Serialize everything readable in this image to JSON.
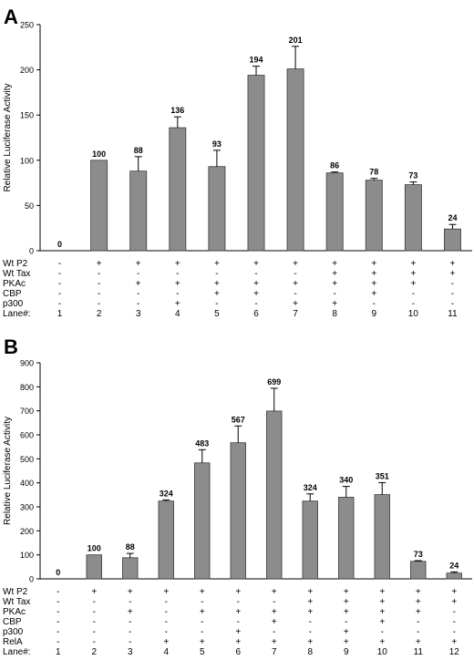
{
  "chart_data": [
    {
      "type": "bar",
      "panel_label": "A",
      "ylabel": "Relative Luciferase Activity",
      "ylim": [
        0,
        250
      ],
      "yticks": [
        0,
        50,
        100,
        150,
        200,
        250
      ],
      "values": [
        0,
        100,
        88,
        136,
        93,
        194,
        201,
        86,
        78,
        73,
        24
      ],
      "value_labels": [
        "0",
        "100",
        "88",
        "136",
        "93",
        "194",
        "201",
        "86",
        "78",
        "73",
        "24"
      ],
      "errors": [
        0,
        0,
        16,
        12,
        18,
        10,
        25,
        1,
        2,
        3,
        5
      ],
      "bar_color": "#8c8c8c",
      "grid": false,
      "condition_rows": [
        {
          "label": "Wt P2",
          "signs": [
            "-",
            "+",
            "+",
            "+",
            "+",
            "+",
            "+",
            "+",
            "+",
            "+",
            "+"
          ]
        },
        {
          "label": "Wt Tax",
          "signs": [
            "-",
            "-",
            "-",
            "-",
            "-",
            "-",
            "-",
            "+",
            "+",
            "+",
            "+"
          ]
        },
        {
          "label": "PKAc",
          "signs": [
            "-",
            "-",
            "+",
            "+",
            "+",
            "+",
            "+",
            "+",
            "+",
            "+",
            "-"
          ]
        },
        {
          "label": "CBP",
          "signs": [
            "-",
            "-",
            "-",
            "-",
            "+",
            "+",
            "-",
            "-",
            "+",
            "-",
            "-"
          ]
        },
        {
          "label": "p300",
          "signs": [
            "-",
            "-",
            "-",
            "+",
            "-",
            "-",
            "+",
            "+",
            "-",
            "-",
            "-"
          ]
        }
      ],
      "lane_row": {
        "label": "Lane#:",
        "values": [
          "1",
          "2",
          "3",
          "4",
          "5",
          "6",
          "7",
          "8",
          "9",
          "10",
          "11"
        ]
      }
    },
    {
      "type": "bar",
      "panel_label": "B",
      "ylabel": "Relative Luciferase Activity",
      "ylim": [
        0,
        900
      ],
      "yticks": [
        0,
        100,
        200,
        300,
        400,
        500,
        600,
        700,
        800,
        900
      ],
      "values": [
        0,
        100,
        88,
        324,
        483,
        567,
        699,
        324,
        340,
        351,
        73,
        24
      ],
      "value_labels": [
        "0",
        "100",
        "88",
        "324",
        "483",
        "567",
        "699",
        "324",
        "340",
        "351",
        "73",
        "24"
      ],
      "errors": [
        0,
        0,
        18,
        5,
        55,
        70,
        95,
        30,
        45,
        50,
        3,
        5
      ],
      "bar_color": "#8c8c8c",
      "grid": false,
      "condition_rows": [
        {
          "label": "Wt P2",
          "signs": [
            "-",
            "+",
            "+",
            "+",
            "+",
            "+",
            "+",
            "+",
            "+",
            "+",
            "+",
            "+"
          ]
        },
        {
          "label": "Wt Tax",
          "signs": [
            "-",
            "-",
            "-",
            "-",
            "-",
            "-",
            "-",
            "+",
            "+",
            "+",
            "+",
            "+"
          ]
        },
        {
          "label": "PKAc",
          "signs": [
            "-",
            "-",
            "+",
            "-",
            "+",
            "+",
            "+",
            "+",
            "+",
            "+",
            "+",
            "-"
          ]
        },
        {
          "label": "CBP",
          "signs": [
            "-",
            "-",
            "-",
            "-",
            "-",
            "-",
            "+",
            "-",
            "-",
            "+",
            "-",
            "-"
          ]
        },
        {
          "label": "p300",
          "signs": [
            "-",
            "-",
            "-",
            "-",
            "-",
            "+",
            "-",
            "-",
            "+",
            "-",
            "-",
            "-"
          ]
        },
        {
          "label": "RelA",
          "signs": [
            "-",
            "-",
            "-",
            "+",
            "+",
            "+",
            "+",
            "+",
            "+",
            "+",
            "+",
            "+"
          ]
        }
      ],
      "lane_row": {
        "label": "Lane#:",
        "values": [
          "1",
          "2",
          "3",
          "4",
          "5",
          "6",
          "7",
          "8",
          "9",
          "10",
          "11",
          "12"
        ]
      }
    }
  ]
}
